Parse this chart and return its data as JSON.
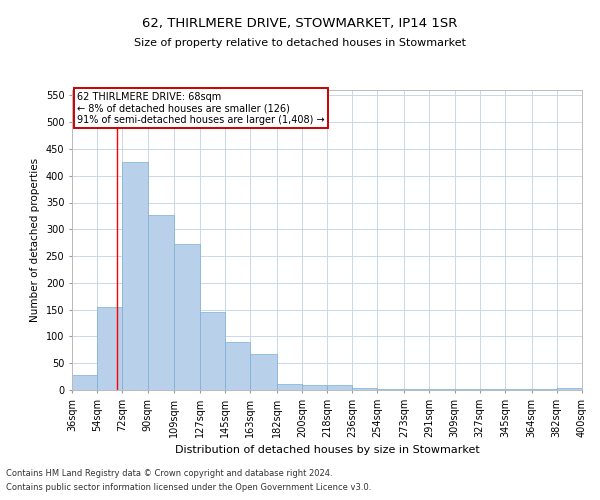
{
  "title": "62, THIRLMERE DRIVE, STOWMARKET, IP14 1SR",
  "subtitle": "Size of property relative to detached houses in Stowmarket",
  "xlabel": "Distribution of detached houses by size in Stowmarket",
  "ylabel": "Number of detached properties",
  "bar_color": "#b8d0ea",
  "bar_edge_color": "#7aafd4",
  "background_color": "#ffffff",
  "grid_color": "#c8d8ea",
  "annotation_box_color": "#cc0000",
  "annotation_text": "62 THIRLMERE DRIVE: 68sqm\n← 8% of detached houses are smaller (126)\n91% of semi-detached houses are larger (1,408) →",
  "property_line_x": 68,
  "ylim": [
    0,
    560
  ],
  "yticks": [
    0,
    50,
    100,
    150,
    200,
    250,
    300,
    350,
    400,
    450,
    500,
    550
  ],
  "bin_edges": [
    36,
    54,
    72,
    90,
    109,
    127,
    145,
    163,
    182,
    200,
    218,
    236,
    254,
    273,
    291,
    309,
    327,
    345,
    364,
    382,
    400
  ],
  "bar_heights": [
    28,
    155,
    425,
    327,
    272,
    145,
    90,
    68,
    12,
    9,
    9,
    4,
    2,
    2,
    2,
    1,
    1,
    1,
    1,
    4
  ],
  "footnote1": "Contains HM Land Registry data © Crown copyright and database right 2024.",
  "footnote2": "Contains public sector information licensed under the Open Government Licence v3.0."
}
